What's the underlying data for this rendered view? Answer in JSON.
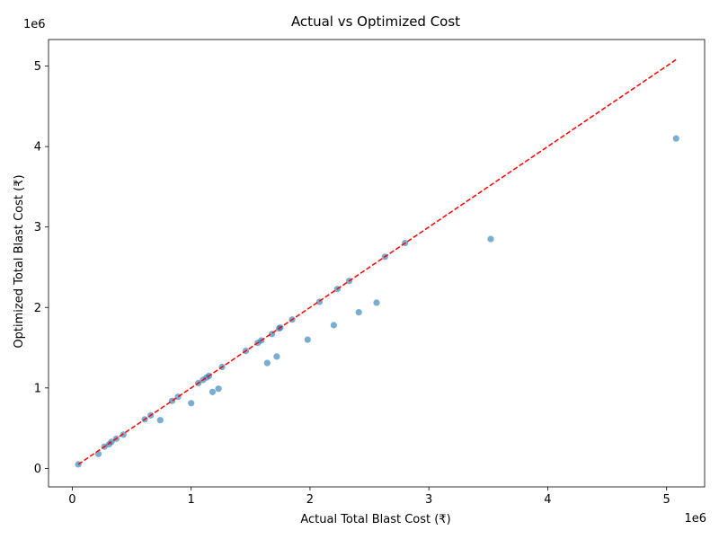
{
  "chart_data": {
    "type": "scatter",
    "title": "Actual vs Optimized Cost",
    "xlabel": "Actual Total Blast Cost (₹)",
    "ylabel": "Optimized Total Blast Cost (₹)",
    "x_offset_label": "1e6",
    "y_offset_label": "1e6",
    "xlim": [
      -0.2,
      5.32
    ],
    "ylim": [
      -0.23,
      5.33
    ],
    "x_ticks": [
      0,
      1,
      2,
      3,
      4,
      5
    ],
    "y_ticks": [
      0,
      1,
      2,
      3,
      4,
      5
    ],
    "x_tick_labels": [
      "0",
      "1",
      "2",
      "3",
      "4",
      "5"
    ],
    "y_tick_labels": [
      "0",
      "1",
      "2",
      "3",
      "4",
      "5"
    ],
    "grid": false,
    "point_color": "#1f77b4",
    "line_color": "#ff0000",
    "reference_line": {
      "style": "dashed",
      "from": [
        0.05,
        0.05
      ],
      "to": [
        5.08,
        5.08
      ]
    },
    "points": [
      {
        "x": 0.05,
        "y": 0.05
      },
      {
        "x": 0.22,
        "y": 0.18
      },
      {
        "x": 0.27,
        "y": 0.27
      },
      {
        "x": 0.31,
        "y": 0.3
      },
      {
        "x": 0.33,
        "y": 0.33
      },
      {
        "x": 0.37,
        "y": 0.37
      },
      {
        "x": 0.43,
        "y": 0.42
      },
      {
        "x": 0.61,
        "y": 0.61
      },
      {
        "x": 0.66,
        "y": 0.66
      },
      {
        "x": 0.74,
        "y": 0.6
      },
      {
        "x": 0.84,
        "y": 0.84
      },
      {
        "x": 0.89,
        "y": 0.89
      },
      {
        "x": 1.0,
        "y": 0.81
      },
      {
        "x": 1.06,
        "y": 1.06
      },
      {
        "x": 1.1,
        "y": 1.1
      },
      {
        "x": 1.13,
        "y": 1.13
      },
      {
        "x": 1.15,
        "y": 1.15
      },
      {
        "x": 1.18,
        "y": 0.95
      },
      {
        "x": 1.23,
        "y": 0.99
      },
      {
        "x": 1.26,
        "y": 1.26
      },
      {
        "x": 1.46,
        "y": 1.46
      },
      {
        "x": 1.56,
        "y": 1.56
      },
      {
        "x": 1.59,
        "y": 1.59
      },
      {
        "x": 1.64,
        "y": 1.31
      },
      {
        "x": 1.68,
        "y": 1.67
      },
      {
        "x": 1.72,
        "y": 1.39
      },
      {
        "x": 1.74,
        "y": 1.74
      },
      {
        "x": 1.75,
        "y": 1.75
      },
      {
        "x": 1.85,
        "y": 1.85
      },
      {
        "x": 1.98,
        "y": 1.6
      },
      {
        "x": 2.08,
        "y": 2.07
      },
      {
        "x": 2.2,
        "y": 1.78
      },
      {
        "x": 2.23,
        "y": 2.23
      },
      {
        "x": 2.33,
        "y": 2.33
      },
      {
        "x": 2.41,
        "y": 1.94
      },
      {
        "x": 2.56,
        "y": 2.06
      },
      {
        "x": 2.63,
        "y": 2.63
      },
      {
        "x": 2.8,
        "y": 2.8
      },
      {
        "x": 3.52,
        "y": 2.85
      },
      {
        "x": 5.08,
        "y": 4.1
      }
    ]
  }
}
